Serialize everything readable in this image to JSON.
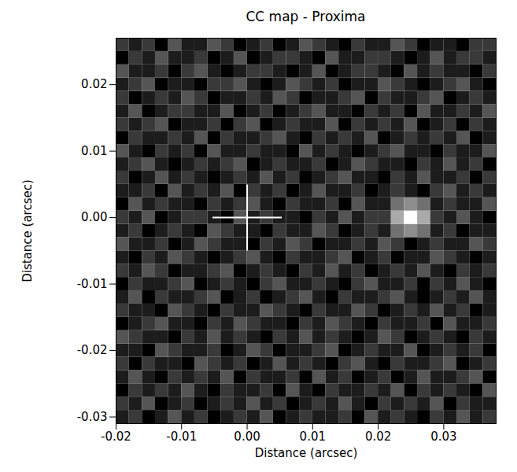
{
  "chart_data": {
    "type": "heatmap",
    "title": "CC map - Proxima",
    "x_label": "Distance (arcsec)",
    "y_label": "Distance (arcsec)",
    "xlim": [
      -0.02,
      0.038
    ],
    "ylim": [
      -0.031,
      0.027
    ],
    "xticks": [
      -0.02,
      -0.01,
      {
        "value": 0,
        "label": "0.00"
      },
      0.01,
      0.02,
      {
        "value": 0.03,
        "label": "0.03"
      }
    ],
    "yticks": [
      -0.03,
      -0.02,
      -0.01,
      {
        "value": 0,
        "label": "0.00"
      },
      0.01,
      0.02
    ],
    "cross": [
      0,
      0
    ],
    "x": [
      -0.019,
      -0.017,
      -0.015,
      -0.013,
      -0.011,
      -0.009,
      -0.007,
      -0.005,
      -0.003,
      -0.001,
      0.001,
      0.003,
      0.005,
      0.007,
      0.009,
      0.011,
      0.013,
      0.015,
      0.017,
      0.019,
      0.021,
      0.023,
      0.025,
      0.027,
      0.029,
      0.031,
      0.033,
      0.035,
      0.037
    ],
    "y": [
      -0.03,
      -0.028,
      -0.026,
      -0.024,
      -0.022,
      -0.02,
      -0.018,
      -0.016,
      -0.014,
      -0.012,
      -0.01,
      -0.008,
      -0.006,
      -0.004,
      -0.002,
      0.0,
      0.002,
      0.004,
      0.006,
      0.008,
      0.01,
      0.012,
      0.014,
      0.016,
      0.018,
      0.02,
      0.022,
      0.024,
      0.026
    ],
    "cells": [
      [
        2,
        3,
        1,
        2,
        4,
        2,
        3,
        1,
        2,
        3,
        2,
        4,
        1,
        2,
        3,
        2,
        2,
        3,
        1,
        4,
        2,
        3,
        2,
        1,
        3,
        2,
        4,
        2,
        3
      ],
      [
        3,
        2,
        4,
        1,
        2,
        3,
        1,
        2,
        3,
        2,
        4,
        2,
        3,
        1,
        2,
        3,
        2,
        4,
        2,
        1,
        3,
        2,
        3,
        2,
        4,
        1,
        3,
        2,
        2
      ],
      [
        1,
        3,
        2,
        3,
        2,
        4,
        2,
        1,
        3,
        2,
        2,
        3,
        1,
        4,
        2,
        1,
        3,
        2,
        2,
        3,
        2,
        4,
        1,
        3,
        2,
        3,
        2,
        1,
        4
      ],
      [
        2,
        4,
        2,
        1,
        3,
        2,
        3,
        2,
        4,
        1,
        3,
        2,
        2,
        3,
        1,
        4,
        2,
        3,
        1,
        2,
        3,
        1,
        2,
        4,
        2,
        2,
        3,
        4,
        1
      ],
      [
        3,
        1,
        3,
        2,
        2,
        1,
        4,
        3,
        2,
        3,
        1,
        2,
        4,
        2,
        3,
        2,
        1,
        3,
        4,
        2,
        1,
        3,
        2,
        2,
        3,
        4,
        1,
        2,
        3
      ],
      [
        2,
        2,
        1,
        4,
        3,
        2,
        2,
        3,
        1,
        2,
        4,
        3,
        1,
        2,
        2,
        3,
        4,
        1,
        2,
        3,
        2,
        2,
        4,
        1,
        2,
        3,
        2,
        3,
        1
      ],
      [
        4,
        3,
        2,
        2,
        1,
        3,
        2,
        4,
        2,
        3,
        2,
        1,
        3,
        2,
        4,
        2,
        3,
        2,
        1,
        2,
        4,
        3,
        1,
        2,
        3,
        2,
        1,
        3,
        2
      ],
      [
        1,
        2,
        3,
        4,
        2,
        2,
        1,
        3,
        2,
        4,
        3,
        2,
        2,
        1,
        3,
        2,
        4,
        3,
        2,
        1,
        3,
        2,
        2,
        3,
        1,
        4,
        2,
        2,
        3
      ],
      [
        3,
        2,
        2,
        1,
        4,
        3,
        2,
        1,
        3,
        2,
        2,
        4,
        3,
        2,
        1,
        3,
        2,
        2,
        4,
        3,
        1,
        2,
        3,
        2,
        4,
        2,
        3,
        1,
        2
      ],
      [
        2,
        4,
        1,
        3,
        2,
        2,
        3,
        4,
        1,
        2,
        3,
        1,
        2,
        3,
        4,
        2,
        1,
        3,
        2,
        2,
        3,
        4,
        2,
        1,
        2,
        3,
        2,
        4,
        2
      ],
      [
        1,
        3,
        2,
        2,
        3,
        4,
        1,
        2,
        3,
        2,
        1,
        3,
        4,
        2,
        2,
        3,
        2,
        1,
        3,
        4,
        2,
        2,
        3,
        1,
        3,
        2,
        4,
        2,
        1
      ],
      [
        3,
        2,
        4,
        3,
        1,
        2,
        2,
        3,
        4,
        1,
        2,
        3,
        2,
        1,
        3,
        2,
        4,
        2,
        3,
        1,
        2,
        3,
        2,
        4,
        2,
        1,
        3,
        2,
        3
      ],
      [
        2,
        1,
        3,
        2,
        4,
        3,
        2,
        1,
        2,
        3,
        4,
        2,
        1,
        3,
        2,
        2,
        3,
        4,
        1,
        2,
        3,
        1,
        2,
        2,
        4,
        3,
        2,
        1,
        2
      ],
      [
        4,
        2,
        2,
        3,
        1,
        2,
        4,
        3,
        2,
        2,
        1,
        3,
        2,
        4,
        3,
        1,
        2,
        2,
        3,
        2,
        4,
        3,
        1,
        2,
        3,
        2,
        2,
        4,
        3
      ],
      [
        2,
        3,
        1,
        2,
        3,
        2,
        1,
        4,
        3,
        2,
        2,
        1,
        3,
        2,
        2,
        4,
        3,
        1,
        2,
        3,
        2,
        5,
        6,
        5,
        2,
        3,
        1,
        2,
        2
      ],
      [
        3,
        2,
        4,
        1,
        2,
        3,
        3,
        2,
        1,
        4,
        2,
        3,
        2,
        2,
        1,
        3,
        2,
        4,
        2,
        3,
        3,
        7,
        10,
        7,
        3,
        2,
        4,
        2,
        1
      ],
      [
        1,
        4,
        2,
        3,
        2,
        2,
        1,
        3,
        2,
        3,
        4,
        2,
        1,
        3,
        2,
        2,
        3,
        1,
        4,
        2,
        2,
        5,
        6,
        5,
        2,
        3,
        2,
        2,
        4
      ],
      [
        2,
        2,
        3,
        1,
        4,
        2,
        3,
        2,
        4,
        1,
        3,
        2,
        3,
        1,
        2,
        4,
        2,
        2,
        3,
        1,
        2,
        3,
        2,
        1,
        3,
        4,
        2,
        3,
        2
      ],
      [
        3,
        1,
        2,
        4,
        2,
        3,
        2,
        1,
        2,
        3,
        2,
        4,
        2,
        3,
        1,
        2,
        3,
        4,
        2,
        2,
        1,
        3,
        2,
        4,
        2,
        2,
        3,
        1,
        3
      ],
      [
        2,
        3,
        4,
        2,
        1,
        2,
        3,
        2,
        3,
        4,
        1,
        2,
        3,
        2,
        2,
        3,
        1,
        2,
        4,
        3,
        2,
        2,
        1,
        3,
        2,
        4,
        2,
        3,
        1
      ],
      [
        4,
        2,
        1,
        3,
        2,
        3,
        1,
        4,
        2,
        2,
        3,
        2,
        2,
        1,
        4,
        2,
        3,
        2,
        1,
        2,
        3,
        4,
        2,
        2,
        1,
        3,
        2,
        2,
        4
      ],
      [
        1,
        3,
        2,
        2,
        3,
        2,
        4,
        1,
        3,
        2,
        2,
        3,
        4,
        2,
        1,
        3,
        2,
        3,
        2,
        4,
        1,
        2,
        3,
        2,
        3,
        2,
        4,
        1,
        2
      ],
      [
        3,
        2,
        3,
        4,
        1,
        2,
        2,
        3,
        1,
        3,
        4,
        1,
        2,
        3,
        2,
        2,
        4,
        1,
        3,
        2,
        3,
        2,
        4,
        1,
        2,
        3,
        1,
        3,
        2
      ],
      [
        2,
        4,
        1,
        2,
        3,
        3,
        2,
        2,
        4,
        1,
        2,
        3,
        1,
        2,
        3,
        4,
        2,
        2,
        1,
        3,
        2,
        3,
        1,
        4,
        2,
        2,
        3,
        2,
        4
      ],
      [
        3,
        1,
        2,
        3,
        2,
        4,
        3,
        1,
        2,
        2,
        3,
        2,
        4,
        3,
        1,
        2,
        2,
        3,
        4,
        1,
        3,
        2,
        2,
        3,
        4,
        1,
        2,
        3,
        2
      ],
      [
        2,
        3,
        4,
        1,
        2,
        2,
        1,
        3,
        3,
        4,
        2,
        1,
        2,
        4,
        3,
        2,
        3,
        1,
        2,
        2,
        4,
        3,
        2,
        1,
        2,
        3,
        4,
        2,
        1
      ],
      [
        4,
        2,
        2,
        3,
        1,
        3,
        4,
        2,
        1,
        2,
        3,
        3,
        2,
        1,
        2,
        4,
        1,
        2,
        3,
        3,
        2,
        1,
        4,
        2,
        3,
        2,
        2,
        1,
        3
      ],
      [
        1,
        3,
        2,
        4,
        2,
        2,
        3,
        1,
        2,
        4,
        1,
        2,
        3,
        3,
        2,
        1,
        4,
        2,
        2,
        3,
        3,
        2,
        1,
        2,
        4,
        2,
        3,
        3,
        2
      ],
      [
        3,
        2,
        3,
        1,
        4,
        2,
        2,
        4,
        3,
        1,
        2,
        3,
        1,
        2,
        4,
        3,
        2,
        1,
        3,
        2,
        2,
        4,
        3,
        1,
        2,
        2,
        1,
        3,
        3
      ]
    ]
  }
}
